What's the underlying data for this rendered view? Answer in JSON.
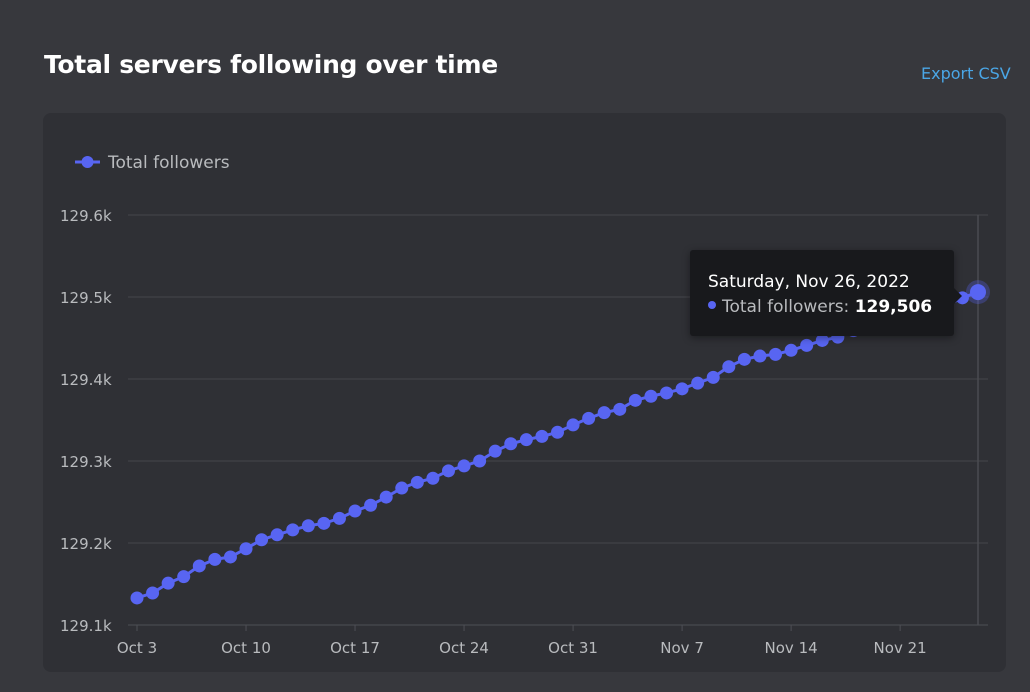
{
  "header": {
    "title": "Total servers following over time",
    "export_label": "Export CSV"
  },
  "tooltip": {
    "date": "Saturday, Nov 26, 2022",
    "series_label": "Total followers: ",
    "value": "129,506"
  },
  "colors": {
    "series": "#5865f2",
    "link": "#4aa6e6",
    "background": "#37383d",
    "panel": "#2f3035",
    "grid": "#45464c",
    "tooltip_bg": "#18191c"
  },
  "chart_data": {
    "type": "line",
    "title": "Total servers following over time",
    "xlabel": "",
    "ylabel": "",
    "legend": [
      "Total followers"
    ],
    "legend_position": "top-left",
    "grid": true,
    "ylim": [
      129100,
      129600
    ],
    "y_ticks": [
      "129.1k",
      "129.2k",
      "129.3k",
      "129.4k",
      "129.5k",
      "129.6k"
    ],
    "x_ticks": [
      "Oct 3",
      "Oct 10",
      "Oct 17",
      "Oct 24",
      "Oct 31",
      "Nov 7",
      "Nov 14",
      "Nov 21"
    ],
    "x_start": "Oct 3, 2022",
    "x_end": "Nov 26, 2022",
    "series": [
      {
        "name": "Total followers",
        "values": [
          129133,
          129139,
          129151,
          129159,
          129172,
          129180,
          129183,
          129193,
          129204,
          129210,
          129216,
          129221,
          129224,
          129230,
          129239,
          129246,
          129256,
          129267,
          129274,
          129279,
          129288,
          129294,
          129300,
          129312,
          129321,
          129326,
          129330,
          129335,
          129344,
          129352,
          129359,
          129363,
          129374,
          129379,
          129383,
          129388,
          129395,
          129402,
          129415,
          129424,
          129428,
          129430,
          129435,
          129441,
          129447,
          129451,
          129459,
          129463,
          129470,
          129474,
          129479,
          129484,
          129490,
          129499,
          129506
        ]
      }
    ]
  }
}
